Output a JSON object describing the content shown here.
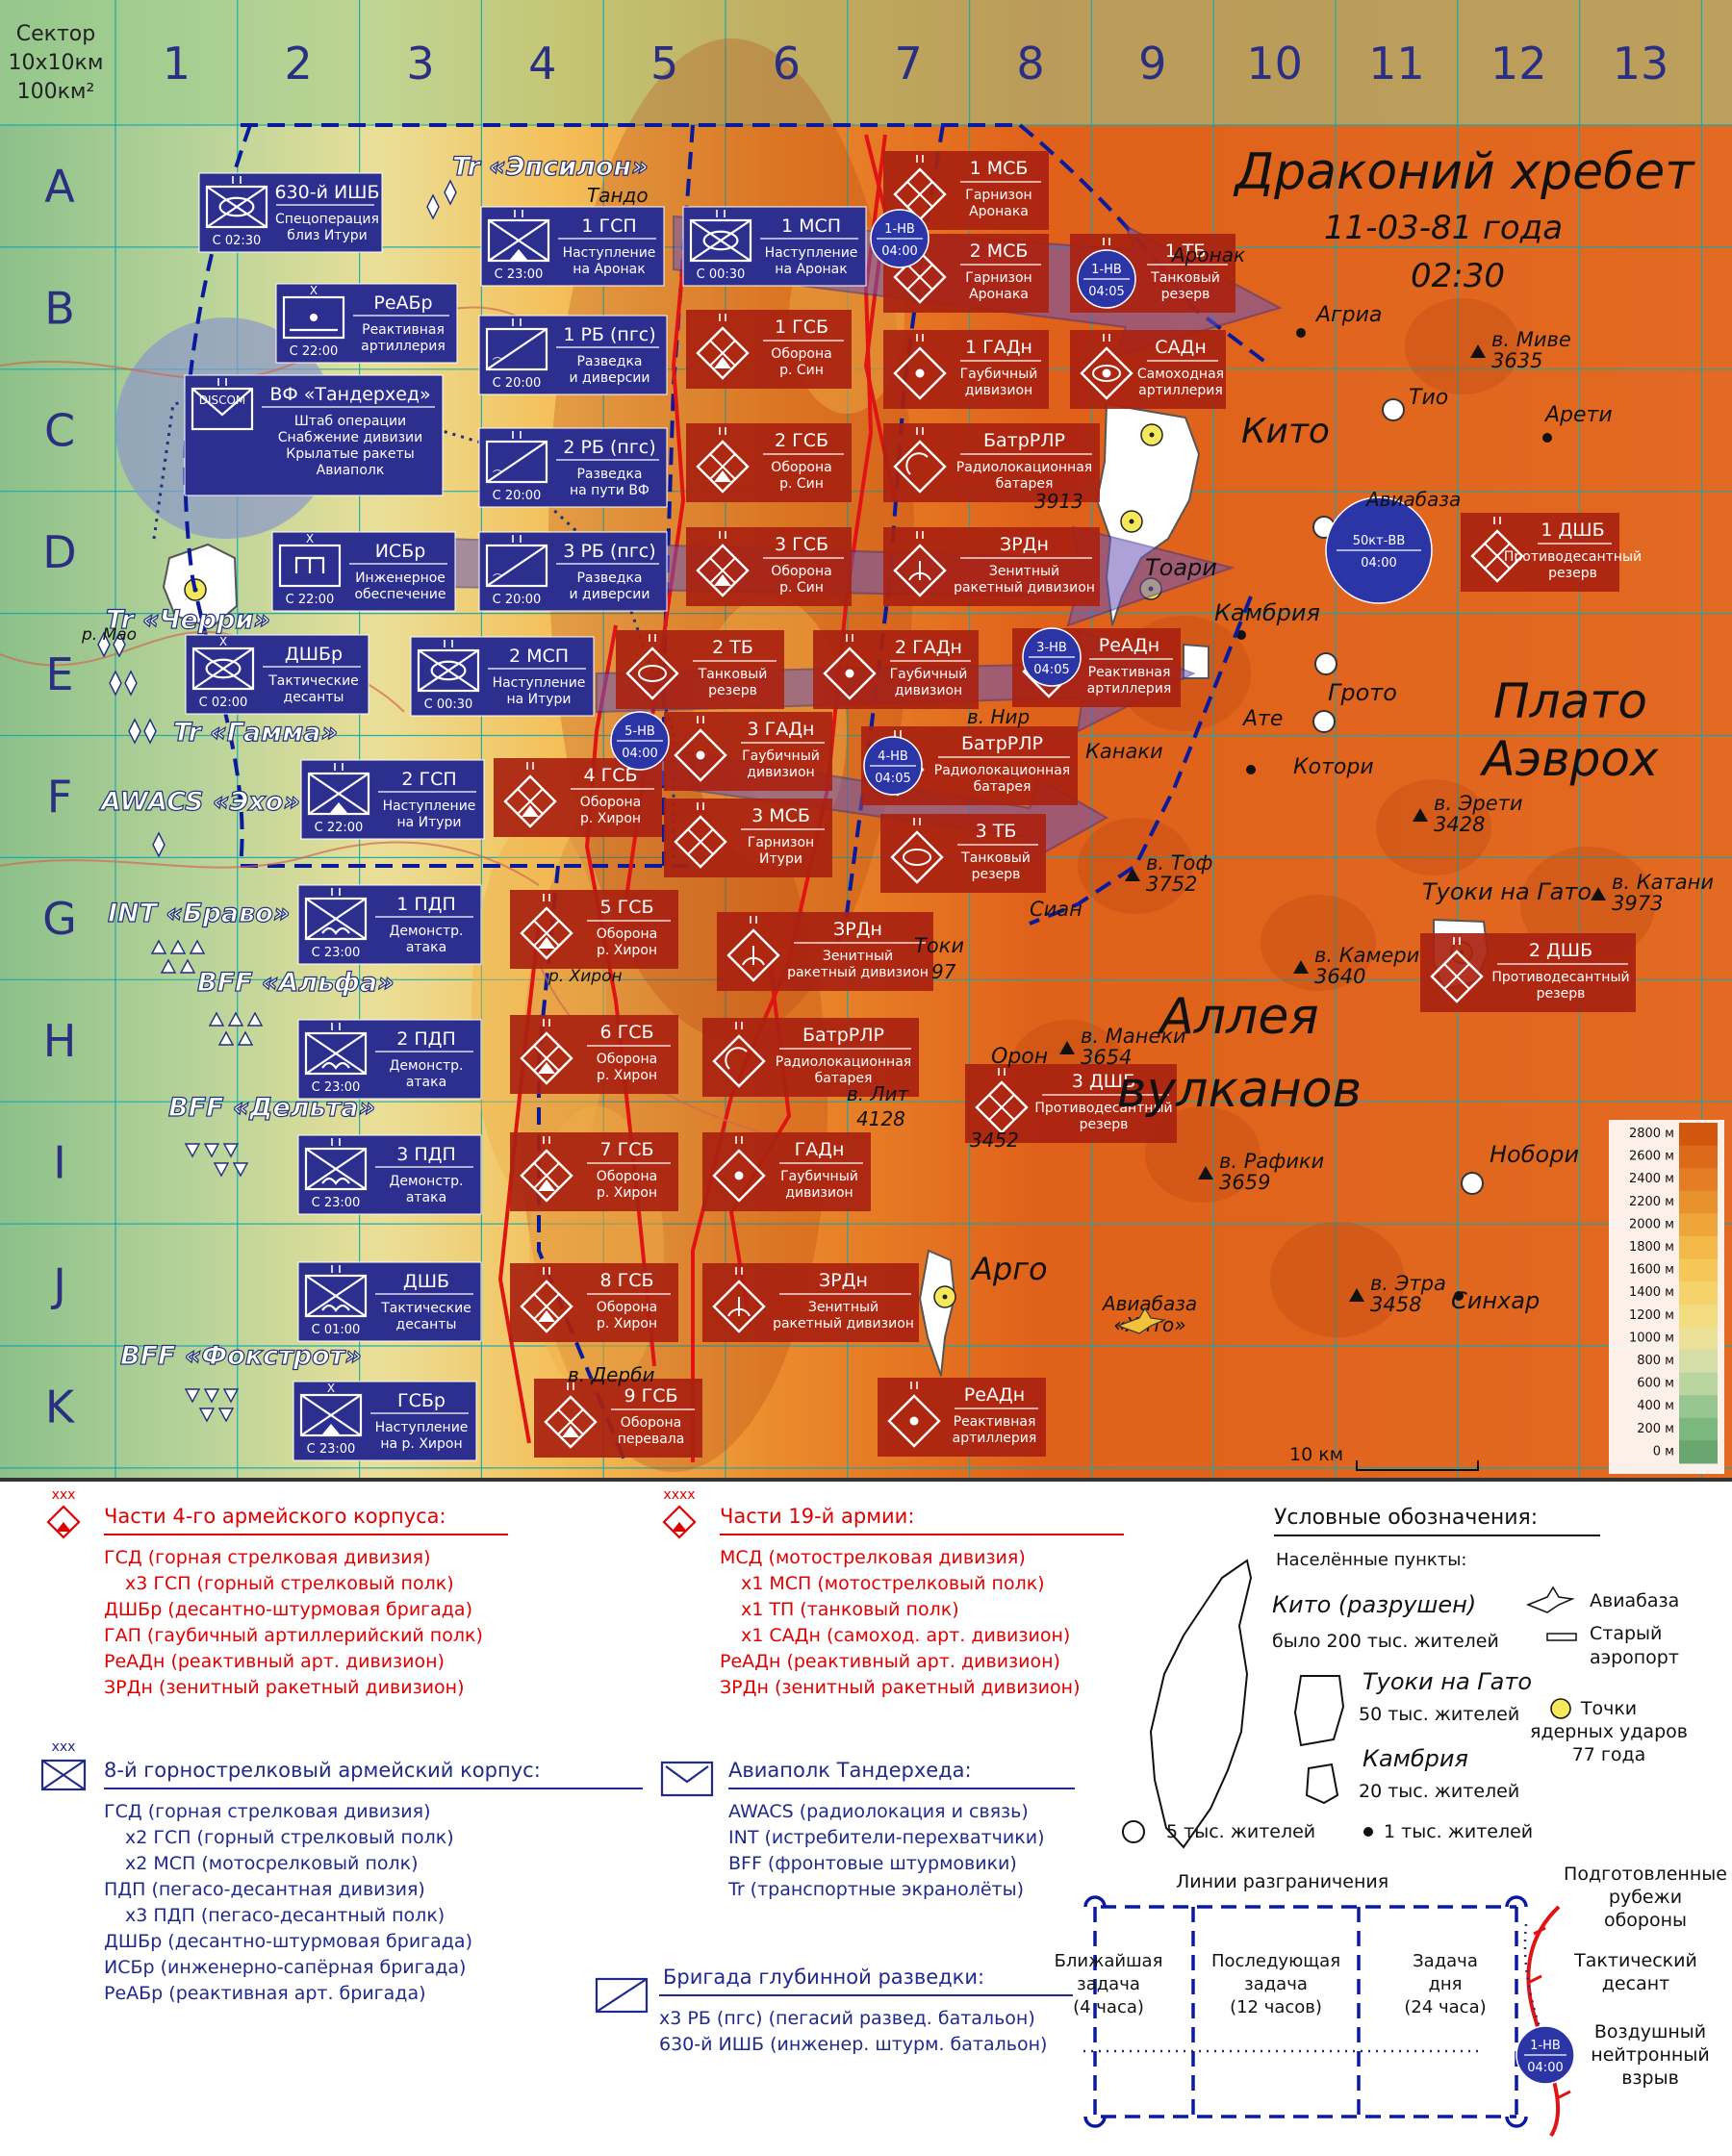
{
  "header": {
    "sector": "Сектор",
    "sector_size": "10x10км",
    "sector_area": "100км²",
    "title_line1": "Драконий хребет",
    "title_line2": "11-03-81 года",
    "title_line3": "02:30"
  },
  "grid": {
    "columns": [
      "1",
      "2",
      "3",
      "4",
      "5",
      "6",
      "7",
      "8",
      "9",
      "10",
      "11",
      "12",
      "13"
    ],
    "rows": [
      "A",
      "B",
      "C",
      "D",
      "E",
      "F",
      "G",
      "H",
      "I",
      "J",
      "K"
    ]
  },
  "regions": [
    {
      "id": "plateau",
      "text": "Плато\nАэврох"
    },
    {
      "id": "alley",
      "text": "Аллея\nвулканов"
    }
  ],
  "places": [
    {
      "id": "kito",
      "text": "Кито"
    },
    {
      "id": "argo",
      "text": "Арго"
    },
    {
      "id": "agria",
      "text": "Агриа"
    },
    {
      "id": "tio",
      "text": "Тио"
    },
    {
      "id": "areti",
      "text": "Арети"
    },
    {
      "id": "toari",
      "text": "Тоари"
    },
    {
      "id": "kambria",
      "text": "Камбрия"
    },
    {
      "id": "ate",
      "text": "Ате"
    },
    {
      "id": "groto",
      "text": "Грото"
    },
    {
      "id": "kotori",
      "text": "Котори"
    },
    {
      "id": "kanaki",
      "text": "Канаки"
    },
    {
      "id": "nir",
      "text": "в. Нир"
    },
    {
      "id": "sian",
      "text": "Сиан"
    },
    {
      "id": "toki",
      "text": "Токи"
    },
    {
      "id": "oron",
      "text": "Орон"
    },
    {
      "id": "nobori",
      "text": "Нобори"
    },
    {
      "id": "sinhar",
      "text": "Синхар"
    },
    {
      "id": "tuoki",
      "text": "Туоки на Гато"
    },
    {
      "id": "aronak",
      "text": "Аронак"
    },
    {
      "id": "tando",
      "text": "Тандо"
    },
    {
      "id": "airbase_kito",
      "text": "Авиабаза\n«Хито»"
    },
    {
      "id": "airbase_n",
      "text": "Авиабаза"
    },
    {
      "id": "river_sin",
      "text": "р. Мао"
    },
    {
      "id": "river_hiron",
      "text": "р. Хирон"
    },
    {
      "id": "dergi",
      "text": "в. Дерби"
    },
    {
      "id": "lit",
      "text": "в. Лит"
    },
    {
      "id": "lit_h",
      "text": "4128"
    },
    {
      "id": "h3452",
      "text": "3452"
    },
    {
      "id": "h3913",
      "text": "3913"
    },
    {
      "id": "h97",
      "text": "97"
    }
  ],
  "peaks": [
    {
      "name": "в. Миве",
      "h": "3635"
    },
    {
      "name": "в. Эрети",
      "h": "3428"
    },
    {
      "name": "в. Тоф",
      "h": "3752"
    },
    {
      "name": "в. Катани",
      "h": "3973"
    },
    {
      "name": "в. Камери",
      "h": "3640"
    },
    {
      "name": "в. Манеки",
      "h": "3654"
    },
    {
      "name": "в. Рафики",
      "h": "3659"
    },
    {
      "name": "в. Этра",
      "h": "3458"
    }
  ],
  "air_groups": [
    {
      "id": "epsilon",
      "text": "Tr «Эпсилон»"
    },
    {
      "id": "cherry",
      "text": "Tr «Черри»"
    },
    {
      "id": "gamma",
      "text": "Tr «Гамма»"
    },
    {
      "id": "echo",
      "text": "AWACS «Эхо»"
    },
    {
      "id": "bravo",
      "text": "INT «Браво»"
    },
    {
      "id": "alfa",
      "text": "BFF «Альфа»"
    },
    {
      "id": "delta",
      "text": "BFF «Дельта»"
    },
    {
      "id": "foxtrot",
      "text": "BFF «Фокстрот»"
    }
  ],
  "blue_units": [
    {
      "name": "630-й ИШБ",
      "desc": "Спецоперация\nблиз Итури",
      "time": "С 02:30",
      "sym": "ishb"
    },
    {
      "name": "1 ГСП",
      "desc": "Наступление\nна Аронак",
      "time": "С 23:00",
      "sym": "mtn"
    },
    {
      "name": "1 МСП",
      "desc": "Наступление\nна Аронак",
      "time": "С 00:30",
      "sym": "mot"
    },
    {
      "name": "РеАБр",
      "desc": "Реактивная\nартиллерия",
      "time": "С 22:00",
      "sym": "rart",
      "ech": "X"
    },
    {
      "name": "1 РБ (пгс)",
      "desc": "Разведка\nи диверсии",
      "time": "С 20:00",
      "sym": "recon"
    },
    {
      "name": "ВФ «Тандерхед»",
      "desc": "Штаб операции\nСнабжение дивизии\nКрылатые ракеты\nАвиаполк",
      "time": "",
      "sym": "hq",
      "extra": "DISCOM"
    },
    {
      "name": "2 РБ (пгс)",
      "desc": "Разведка\nна пути ВФ",
      "time": "С 20:00",
      "sym": "recon"
    },
    {
      "name": "ИСБр",
      "desc": "Инженерное\nобеспечение",
      "time": "С 22:00",
      "sym": "eng",
      "ech": "X"
    },
    {
      "name": "3 РБ (пгс)",
      "desc": "Разведка\nи диверсии",
      "time": "С 20:00",
      "sym": "recon"
    },
    {
      "name": "ДШБр",
      "desc": "Тактические\nдесанты",
      "time": "С 02:00",
      "sym": "ishb",
      "ech": "X"
    },
    {
      "name": "2 МСП",
      "desc": "Наступление\nна Итури",
      "time": "С 00:30",
      "sym": "mot"
    },
    {
      "name": "2 ГСП",
      "desc": "Наступление\nна Итури",
      "time": "С 22:00",
      "sym": "mtn"
    },
    {
      "name": "1 ПДП",
      "desc": "Демонстр.\nатака",
      "time": "С 23:00",
      "sym": "para"
    },
    {
      "name": "2 ПДП",
      "desc": "Демонстр.\nатака",
      "time": "С 23:00",
      "sym": "para"
    },
    {
      "name": "3 ПДП",
      "desc": "Демонстр.\nатака",
      "time": "С 23:00",
      "sym": "para"
    },
    {
      "name": "ДШБ",
      "desc": "Тактические\nдесанты",
      "time": "С 01:00",
      "sym": "para"
    },
    {
      "name": "ГСБр",
      "desc": "Наступление\nна р. Хирон",
      "time": "С 23:00",
      "sym": "mtn",
      "ech": "X"
    }
  ],
  "red_units": [
    {
      "name": "1 МСБ",
      "desc": "Гарнизон\nАронака",
      "sym": "mot"
    },
    {
      "name": "2 МСБ",
      "desc": "Гарнизон\nАронака",
      "sym": "mot"
    },
    {
      "name": "1 ТБ",
      "desc": "Танковый\nрезерв",
      "sym": "tank"
    },
    {
      "name": "1 ГСБ",
      "desc": "Оборона\nр. Син",
      "sym": "mtn"
    },
    {
      "name": "1 ГАДн",
      "desc": "Гаубичный\nдивизион",
      "sym": "art"
    },
    {
      "name": "САДн",
      "desc": "Самоходная\nартиллерия",
      "sym": "sp"
    },
    {
      "name": "2 ГСБ",
      "desc": "Оборона\nр. Син",
      "sym": "mtn"
    },
    {
      "name": "БатрРЛР",
      "desc": "Радиолокационная\nбатарея",
      "sym": "radar"
    },
    {
      "name": "3 ГСБ",
      "desc": "Оборона\nр. Син",
      "sym": "mtn"
    },
    {
      "name": "ЗРДн",
      "desc": "Зенитный\nракетный дивизион",
      "sym": "sam"
    },
    {
      "name": "1 ДШБ",
      "desc": "Противодесантный\nрезерв",
      "sym": "air"
    },
    {
      "name": "2 ТБ",
      "desc": "Танковый\nрезерв",
      "sym": "tank"
    },
    {
      "name": "2 ГАДн",
      "desc": "Гаубичный\nдивизион",
      "sym": "art"
    },
    {
      "name": "РеАДн",
      "desc": "Реактивная\nартиллерия",
      "sym": "rart"
    },
    {
      "name": "3 ГАДн",
      "desc": "Гаубичный\nдивизион",
      "sym": "art"
    },
    {
      "name": "БатрРЛР",
      "desc": "Радиолокационная\nбатарея",
      "sym": "radar"
    },
    {
      "name": "4 ГСБ",
      "desc": "Оборона\nр. Хирон",
      "sym": "mtn"
    },
    {
      "name": "3 МСБ",
      "desc": "Гарнизон\nИтури",
      "sym": "mot"
    },
    {
      "name": "3 ТБ",
      "desc": "Танковый\nрезерв",
      "sym": "tank"
    },
    {
      "name": "5 ГСБ",
      "desc": "Оборона\nр. Хирон",
      "sym": "mtn"
    },
    {
      "name": "ЗРДн",
      "desc": "Зенитный\nракетный дивизион",
      "sym": "sam"
    },
    {
      "name": "2 ДШБ",
      "desc": "Противодесантный\nрезерв",
      "sym": "air"
    },
    {
      "name": "6 ГСБ",
      "desc": "Оборона\nр. Хирон",
      "sym": "mtn"
    },
    {
      "name": "БатрРЛР",
      "desc": "Радиолокационная\nбатарея",
      "sym": "radar"
    },
    {
      "name": "3 ДШБ",
      "desc": "Противодесантный\nрезерв",
      "sym": "air"
    },
    {
      "name": "7 ГСБ",
      "desc": "Оборона\nр. Хирон",
      "sym": "mtn"
    },
    {
      "name": "ГАДн",
      "desc": "Гаубичный\nдивизион",
      "sym": "art"
    },
    {
      "name": "8 ГСБ",
      "desc": "Оборона\nр. Хирон",
      "sym": "mtn"
    },
    {
      "name": "ЗРДн",
      "desc": "Зенитный\nракетный дивизион",
      "sym": "sam"
    },
    {
      "name": "9 ГСБ",
      "desc": "Оборона\nперевала",
      "sym": "mtn"
    },
    {
      "name": "РеАДн",
      "desc": "Реактивная\nартиллерия",
      "sym": "rart"
    }
  ],
  "nuclear": [
    {
      "l1": "1-НВ",
      "l2": "04:00"
    },
    {
      "l1": "1-НВ",
      "l2": "04:05"
    },
    {
      "l1": "3-НВ",
      "l2": "04:05"
    },
    {
      "l1": "5-НВ",
      "l2": "04:00"
    },
    {
      "l1": "4-НВ",
      "l2": "04:05"
    },
    {
      "l1": "50кт-ВВ",
      "l2": "04:00"
    }
  ],
  "elevation": {
    "labels": [
      "2800 м",
      "2600 м",
      "2400 м",
      "2200 м",
      "2000 м",
      "1800 м",
      "1600 м",
      "1400 м",
      "1200 м",
      "1000 м",
      "800 м",
      "600 м",
      "400 м",
      "200 м",
      "0 м"
    ],
    "colors": [
      "#d3560f",
      "#dc6a1a",
      "#e37e24",
      "#e8922e",
      "#eea63a",
      "#f2b848",
      "#f4c758",
      "#f5d36a",
      "#f3dc80",
      "#eae098",
      "#d6dea8",
      "#bad5a0",
      "#98c690",
      "#7cb77e",
      "#6aa66f"
    ]
  },
  "scale": "10 км",
  "legend": {
    "red_corps": {
      "title": "Части 4-го армейского корпуса:",
      "ech": "xxx",
      "items": [
        {
          "t": "ГСД (горная стрелковая дивизия)",
          "i": 0
        },
        {
          "t": "x3 ГСП (горный стрелковый полк)",
          "i": 1
        },
        {
          "t": "ДШБр (десантно-штурмовая бригада)",
          "i": 0
        },
        {
          "t": "ГАП (гаубичный артиллерийский полк)",
          "i": 0
        },
        {
          "t": "РеАДн (реактивный арт. дивизион)",
          "i": 0
        },
        {
          "t": "ЗРДн (зенитный ракетный дивизион)",
          "i": 0
        }
      ]
    },
    "red_army": {
      "title": "Части 19-й армии:",
      "ech": "xxxx",
      "items": [
        {
          "t": "МСД (мотострелковая дивизия)",
          "i": 0
        },
        {
          "t": "x1 МСП (мотострелковый полк)",
          "i": 1
        },
        {
          "t": "x1 ТП (танковый полк)",
          "i": 1
        },
        {
          "t": "x1 САДн (самоход. арт. дивизион)",
          "i": 1
        },
        {
          "t": "РеАДн (реактивный арт. дивизион)",
          "i": 0
        },
        {
          "t": "ЗРДн (зенитный ракетный дивизион)",
          "i": 0
        }
      ]
    },
    "blue_corps": {
      "title": "8-й горнострелковый армейский корпус:",
      "ech": "xxx",
      "items": [
        {
          "t": "ГСД (горная стрелковая дивизия)",
          "i": 0
        },
        {
          "t": "x2 ГСП (горный стрелковый полк)",
          "i": 1
        },
        {
          "t": "x2 МСП (мотосрелковый полк)",
          "i": 1
        },
        {
          "t": "ПДП (пегасо-десантная дивизия)",
          "i": 0
        },
        {
          "t": "x3 ПДП (пегасо-десантный полк)",
          "i": 1
        },
        {
          "t": "ДШБр (десантно-штурмовая бригада)",
          "i": 0
        },
        {
          "t": "ИСБр (инженерно-сапёрная бригада)",
          "i": 0
        },
        {
          "t": "РеАБр (реактивная арт. бригада)",
          "i": 0
        }
      ]
    },
    "air_regiment": {
      "title": "Авиаполк Тандерхеда:",
      "items": [
        {
          "t": "AWACS (радиолокация и связь)",
          "i": 0
        },
        {
          "t": "INT (истребители-перехватчики)",
          "i": 0
        },
        {
          "t": "BFF (фронтовые штурмовики)",
          "i": 0
        },
        {
          "t": "Tr (транспортные экранолёты)",
          "i": 0
        }
      ]
    },
    "recon": {
      "title": "Бригада глубинной разведки:",
      "items": [
        {
          "t": "x3 РБ (пгс) (пегасий развед. батальон)",
          "i": 0
        },
        {
          "t": "630-й ИШБ (инженер. штурм. батальон)",
          "i": 0
        }
      ]
    },
    "conv": {
      "title": "Условные обозначения:",
      "settlements": "Населённые пункты:",
      "kito": "Кито (разрушен)",
      "kito_pop": "было 200 тыс. жителей",
      "tuoki": "Туоки на Гато",
      "tuoki_pop": "50 тыс. жителей",
      "kambria": "Камбрия",
      "kambria_pop": "20 тыс. жителей",
      "airbase": "Авиабаза",
      "old_airport": "Старый\nаэропорт",
      "nuke": "Точки\nядерных ударов\n77 года",
      "pop5": "5 тыс. жителей",
      "pop1": "1 тыс. жителей",
      "lines_title": "Линии разграничения",
      "line1": "Ближайшая\nзадача\n(4 часа)",
      "line2": "Последующая\nзадача\n(12 часов)",
      "line3": "Задача\nдня\n(24 часа)",
      "defense": "Подготовленные\nрубежи\nобороны",
      "tactical": "Тактический\nдесант",
      "airburst": "Воздушный\nнейтронный\nвзрыв",
      "nb_l1": "1-НВ",
      "nb_l2": "04:00"
    }
  }
}
